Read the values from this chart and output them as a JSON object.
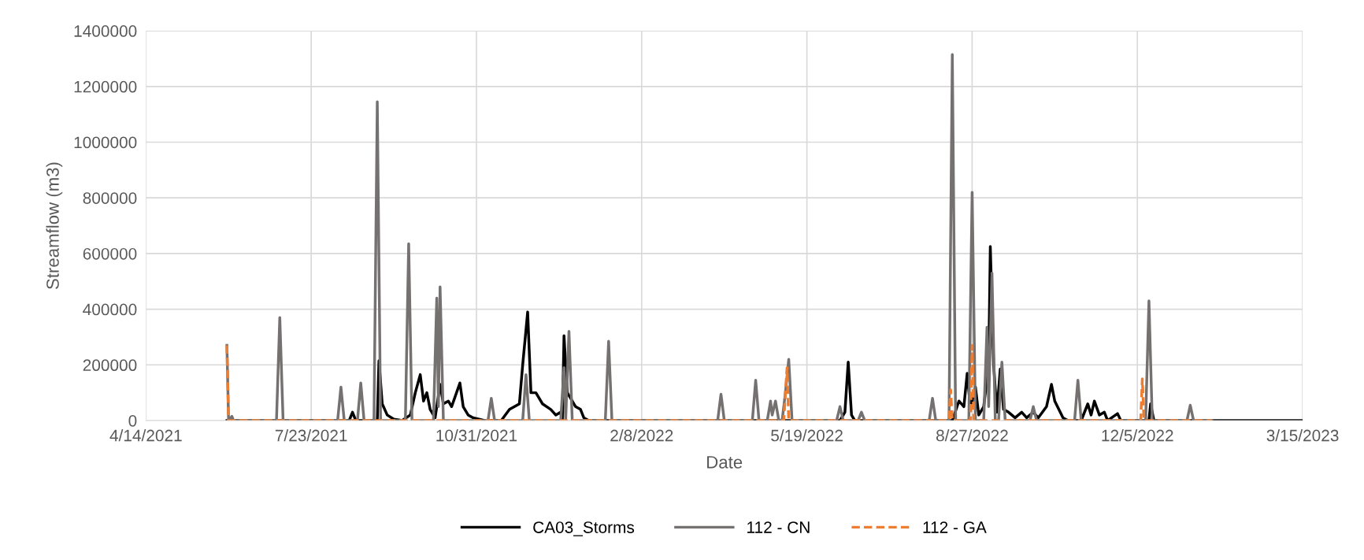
{
  "chart_data": {
    "type": "line",
    "xlabel": "Date",
    "ylabel": "Streamflow (m3)",
    "xlim": [
      "2021-04-14",
      "2023-03-15"
    ],
    "xticks": [
      {
        "value": "2021-04-14",
        "label": "4/14/2021"
      },
      {
        "value": "2021-07-23",
        "label": "7/23/2021"
      },
      {
        "value": "2021-10-31",
        "label": "10/31/2021"
      },
      {
        "value": "2022-02-08",
        "label": "2/8/2022"
      },
      {
        "value": "2022-05-19",
        "label": "5/19/2022"
      },
      {
        "value": "2022-08-27",
        "label": "8/27/2022"
      },
      {
        "value": "2022-12-05",
        "label": "12/5/2022"
      },
      {
        "value": "2023-03-15",
        "label": "3/15/2023"
      }
    ],
    "ylim": [
      0,
      1400000
    ],
    "yticks": [
      0,
      200000,
      400000,
      600000,
      800000,
      1000000,
      1200000,
      1400000
    ],
    "grid": true,
    "legend": "bottom",
    "marker": "none",
    "series": [
      {
        "name": "CA03_Storms",
        "color": "#000000",
        "line_style": "solid",
        "x": [
          "2021-06-02",
          "2021-08-15",
          "2021-08-17",
          "2021-08-19",
          "2021-09-01",
          "2021-09-02",
          "2021-09-04",
          "2021-09-07",
          "2021-09-11",
          "2021-09-16",
          "2021-09-21",
          "2021-09-24",
          "2021-09-27",
          "2021-09-29",
          "2021-10-01",
          "2021-10-03",
          "2021-10-06",
          "2021-10-09",
          "2021-10-11",
          "2021-10-14",
          "2021-10-16",
          "2021-10-21",
          "2021-10-23",
          "2021-10-26",
          "2021-10-29",
          "2021-11-05",
          "2021-11-15",
          "2021-11-20",
          "2021-11-26",
          "2021-11-28",
          "2021-12-01",
          "2021-12-03",
          "2021-12-06",
          "2021-12-10",
          "2021-12-15",
          "2021-12-18",
          "2021-12-21",
          "2021-12-22",
          "2021-12-23",
          "2021-12-25",
          "2021-12-27",
          "2021-12-30",
          "2022-01-02",
          "2022-01-04",
          "2022-01-07",
          "2022-06-08",
          "2022-06-11",
          "2022-06-13",
          "2022-06-15",
          "2022-06-17",
          "2022-08-15",
          "2022-08-19",
          "2022-08-22",
          "2022-08-24",
          "2022-08-26",
          "2022-08-29",
          "2022-08-31",
          "2022-09-03",
          "2022-09-06",
          "2022-09-07",
          "2022-09-09",
          "2022-09-11",
          "2022-09-13",
          "2022-09-15",
          "2022-09-18",
          "2022-09-22",
          "2022-09-26",
          "2022-09-29",
          "2022-10-03",
          "2022-10-06",
          "2022-10-11",
          "2022-10-14",
          "2022-10-16",
          "2022-10-21",
          "2022-10-24",
          "2022-11-01",
          "2022-11-05",
          "2022-11-07",
          "2022-11-09",
          "2022-11-12",
          "2022-11-15",
          "2022-11-17",
          "2022-11-23",
          "2022-11-25",
          "2022-12-12",
          "2022-12-13",
          "2022-12-15",
          "2023-03-15"
        ],
        "values": [
          0,
          0,
          30000,
          0,
          0,
          215000,
          60000,
          20000,
          5000,
          0,
          20000,
          100000,
          165000,
          70000,
          100000,
          40000,
          10000,
          130000,
          60000,
          70000,
          50000,
          135000,
          50000,
          20000,
          10000,
          0,
          0,
          40000,
          60000,
          200000,
          390000,
          100000,
          100000,
          60000,
          40000,
          20000,
          30000,
          0,
          305000,
          100000,
          80000,
          50000,
          40000,
          10000,
          0,
          0,
          30000,
          210000,
          20000,
          0,
          0,
          70000,
          50000,
          170000,
          40000,
          120000,
          20000,
          50000,
          200000,
          625000,
          200000,
          30000,
          185000,
          40000,
          30000,
          10000,
          30000,
          10000,
          30000,
          10000,
          50000,
          130000,
          70000,
          10000,
          0,
          0,
          60000,
          20000,
          70000,
          20000,
          30000,
          0,
          25000,
          0,
          0,
          60000,
          0,
          0
        ]
      },
      {
        "name": "112 - CN",
        "color": "#767171",
        "line_style": "solid",
        "x": [
          "2021-06-02",
          "2021-06-03",
          "2021-06-05",
          "2021-06-06",
          "2021-07-02",
          "2021-07-04",
          "2021-07-06",
          "2021-08-08",
          "2021-08-10",
          "2021-08-12",
          "2021-08-20",
          "2021-08-22",
          "2021-08-24",
          "2021-08-30",
          "2021-09-01",
          "2021-09-03",
          "2021-09-18",
          "2021-09-20",
          "2021-09-22",
          "2021-10-05",
          "2021-10-07",
          "2021-10-08",
          "2021-10-09",
          "2021-10-11",
          "2021-11-07",
          "2021-11-09",
          "2021-11-11",
          "2021-11-28",
          "2021-11-30",
          "2021-12-02",
          "2021-12-21",
          "2021-12-23",
          "2021-12-24",
          "2021-12-26",
          "2021-12-28",
          "2022-01-17",
          "2022-01-19",
          "2022-01-21",
          "2022-03-26",
          "2022-03-28",
          "2022-03-30",
          "2022-04-16",
          "2022-04-18",
          "2022-04-20",
          "2022-04-25",
          "2022-04-27",
          "2022-04-28",
          "2022-04-30",
          "2022-05-02",
          "2022-05-04",
          "2022-05-06",
          "2022-05-08",
          "2022-05-10",
          "2022-06-06",
          "2022-06-08",
          "2022-06-10",
          "2022-06-19",
          "2022-06-21",
          "2022-06-23",
          "2022-08-01",
          "2022-08-03",
          "2022-08-05",
          "2022-08-13",
          "2022-08-15",
          "2022-08-17",
          "2022-08-25",
          "2022-08-27",
          "2022-08-29",
          "2022-09-03",
          "2022-09-05",
          "2022-09-06",
          "2022-09-08",
          "2022-09-10",
          "2022-09-12",
          "2022-09-14",
          "2022-09-16",
          "2022-10-01",
          "2022-10-03",
          "2022-10-05",
          "2022-10-28",
          "2022-10-30",
          "2022-11-01",
          "2022-12-10",
          "2022-12-12",
          "2022-12-14",
          "2023-01-04",
          "2023-01-06",
          "2023-01-08",
          "2023-01-19"
        ],
        "values": [
          270000,
          0,
          15000,
          0,
          0,
          370000,
          0,
          0,
          120000,
          0,
          0,
          135000,
          0,
          0,
          1145000,
          0,
          0,
          635000,
          0,
          0,
          440000,
          50000,
          480000,
          0,
          0,
          80000,
          0,
          0,
          165000,
          0,
          0,
          190000,
          0,
          320000,
          0,
          0,
          285000,
          0,
          0,
          95000,
          0,
          0,
          145000,
          0,
          0,
          70000,
          20000,
          70000,
          0,
          0,
          100000,
          220000,
          0,
          0,
          50000,
          0,
          0,
          30000,
          0,
          0,
          80000,
          0,
          0,
          1315000,
          0,
          0,
          820000,
          0,
          0,
          335000,
          50000,
          530000,
          0,
          0,
          210000,
          0,
          0,
          50000,
          0,
          0,
          145000,
          0,
          0,
          430000,
          0,
          0,
          55000,
          0,
          0
        ]
      },
      {
        "name": "112 - GA",
        "color": "#ed7d31",
        "line_style": "dashed",
        "x": [
          "2021-06-02",
          "2021-06-03",
          "2022-05-05",
          "2022-05-06",
          "2022-05-07",
          "2022-05-08",
          "2022-08-13",
          "2022-08-14",
          "2022-08-15",
          "2022-08-26",
          "2022-08-27",
          "2022-08-28",
          "2022-12-07",
          "2022-12-08",
          "2022-12-09",
          "2023-01-19"
        ],
        "values": [
          270000,
          0,
          0,
          100000,
          190000,
          0,
          0,
          110000,
          0,
          0,
          270000,
          0,
          0,
          150000,
          0,
          0
        ]
      }
    ]
  }
}
